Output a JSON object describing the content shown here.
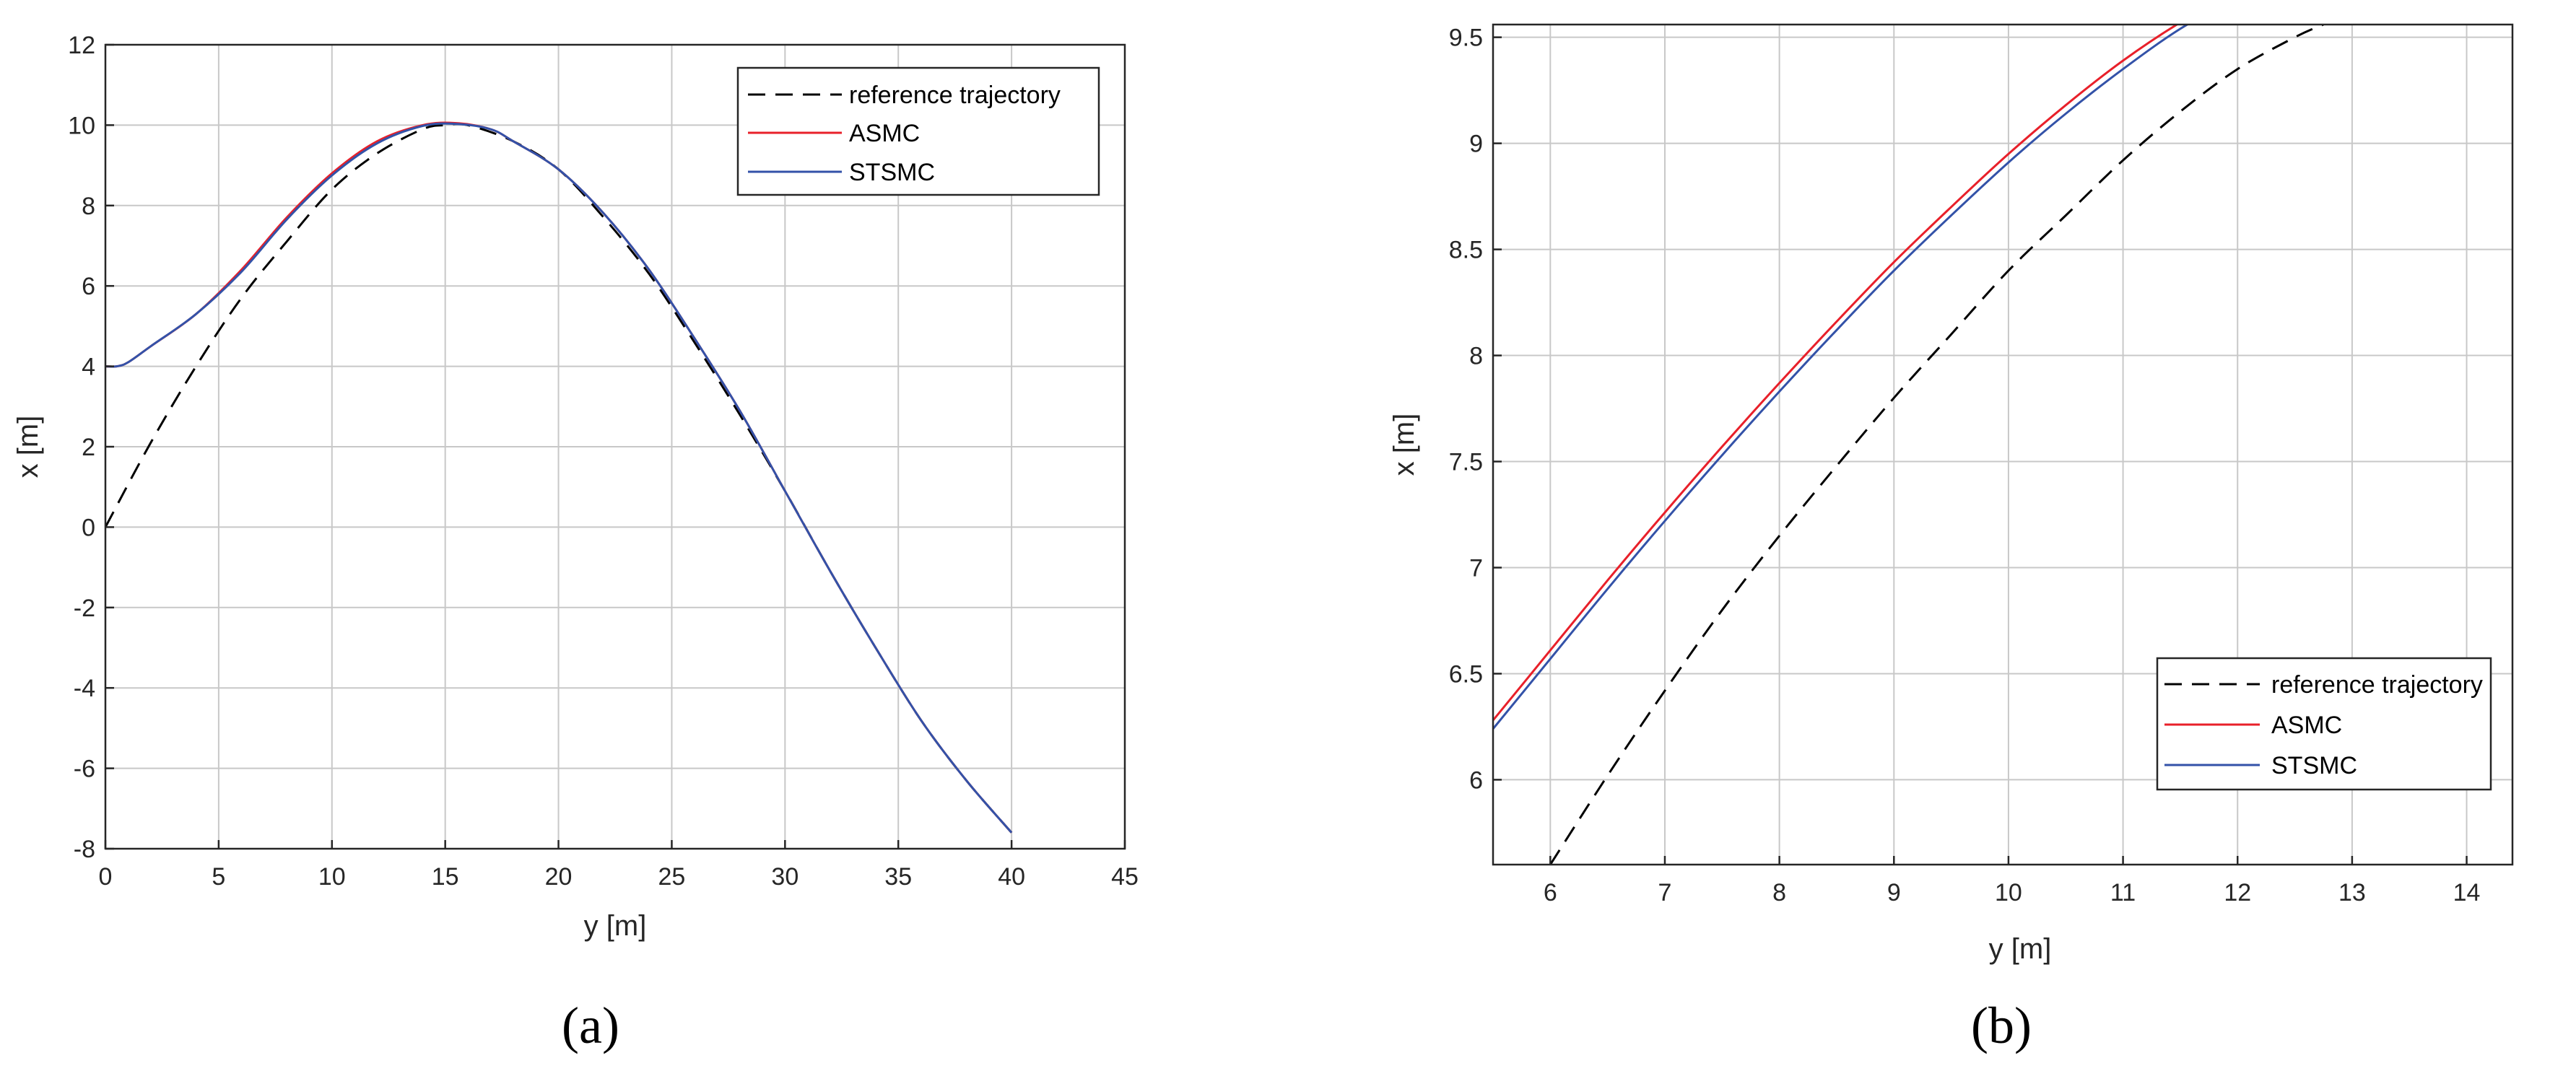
{
  "captions": [
    "(a)",
    "(b)"
  ],
  "colors": {
    "reference": "#000000",
    "asmc": "#e8202a",
    "stsmc": "#3352a8"
  },
  "chart_data": [
    {
      "type": "line",
      "title": "",
      "xlabel": "y [m]",
      "ylabel": "x [m]",
      "xlim": [
        0,
        45
      ],
      "ylim": [
        -8,
        12
      ],
      "xticks": [
        0,
        5,
        10,
        15,
        20,
        25,
        30,
        35,
        40,
        45
      ],
      "yticks": [
        -8,
        -6,
        -4,
        -2,
        0,
        2,
        4,
        6,
        8,
        10,
        12
      ],
      "xtick_labels": [
        "0",
        "5",
        "10",
        "15",
        "20",
        "25",
        "30",
        "35",
        "40",
        "45"
      ],
      "ytick_labels": [
        "-8",
        "-6",
        "-4",
        "-2",
        "0",
        "2",
        "4",
        "6",
        "8",
        "10",
        "12"
      ],
      "grid": true,
      "legend_position": "top-right",
      "series": [
        {
          "name": "reference trajectory",
          "style": "dashed",
          "color": "#000000",
          "x": [
            0,
            2,
            4,
            6,
            8,
            10,
            12,
            14,
            15,
            16,
            18,
            20,
            22,
            24,
            26,
            28,
            30,
            32,
            34,
            36,
            38,
            40
          ],
          "y": [
            0,
            2.1,
            4.0,
            5.7,
            7.1,
            8.4,
            9.3,
            9.9,
            10.0,
            10.0,
            9.6,
            8.9,
            7.7,
            6.3,
            4.6,
            2.8,
            0.9,
            -1.1,
            -3.0,
            -4.8,
            -6.3,
            -7.6
          ]
        },
        {
          "name": "ASMC",
          "style": "solid",
          "color": "#e8202a",
          "x": [
            0,
            0.5,
            1,
            2,
            4,
            6,
            8,
            10,
            12,
            14,
            15.5,
            17,
            18,
            20,
            22,
            24,
            26,
            28,
            30,
            32,
            34,
            36,
            38,
            40
          ],
          "y": [
            4.0,
            4.0,
            4.1,
            4.5,
            5.3,
            6.4,
            7.7,
            8.8,
            9.6,
            10.0,
            10.05,
            9.9,
            9.6,
            8.9,
            7.8,
            6.4,
            4.7,
            2.9,
            0.9,
            -1.1,
            -3.0,
            -4.8,
            -6.3,
            -7.6
          ]
        },
        {
          "name": "STSMC",
          "style": "solid",
          "color": "#3352a8",
          "x": [
            0,
            0.5,
            1,
            2,
            4,
            6,
            8,
            10,
            12,
            14,
            15.5,
            17,
            18,
            20,
            22,
            24,
            26,
            28,
            30,
            32,
            34,
            36,
            38,
            40
          ],
          "y": [
            4.0,
            4.0,
            4.1,
            4.5,
            5.3,
            6.35,
            7.65,
            8.75,
            9.55,
            9.98,
            10.03,
            9.9,
            9.6,
            8.9,
            7.8,
            6.4,
            4.7,
            2.9,
            0.9,
            -1.1,
            -3.0,
            -4.8,
            -6.3,
            -7.6
          ]
        }
      ]
    },
    {
      "type": "line",
      "title": "",
      "xlabel": "y [m]",
      "ylabel": "x [m]",
      "xlim": [
        5.5,
        14.4
      ],
      "ylim": [
        5.6,
        9.56
      ],
      "xticks": [
        6,
        7,
        8,
        9,
        10,
        11,
        12,
        13,
        14
      ],
      "yticks": [
        6,
        6.5,
        7,
        7.5,
        8,
        8.5,
        9,
        9.5
      ],
      "xtick_labels": [
        "6",
        "7",
        "8",
        "9",
        "10",
        "11",
        "12",
        "13",
        "14"
      ],
      "ytick_labels": [
        "6",
        "6.5",
        "7",
        "7.5",
        "8",
        "8.5",
        "9",
        "9.5"
      ],
      "grid": true,
      "legend_position": "bottom-right",
      "series": [
        {
          "name": "reference trajectory",
          "style": "dashed",
          "color": "#000000",
          "x": [
            6.0,
            6.5,
            7.0,
            7.5,
            8.0,
            8.5,
            9.0,
            9.5,
            10.0,
            10.5,
            11.0,
            11.5,
            12.0,
            12.5,
            12.75
          ],
          "y": [
            5.6,
            6.02,
            6.42,
            6.8,
            7.15,
            7.48,
            7.8,
            8.1,
            8.4,
            8.66,
            8.92,
            9.15,
            9.35,
            9.5,
            9.56
          ]
        },
        {
          "name": "ASMC",
          "style": "solid",
          "color": "#e8202a",
          "x": [
            5.5,
            6.0,
            6.5,
            7.0,
            7.5,
            8.0,
            8.5,
            9.0,
            9.5,
            10.0,
            10.5,
            11.0,
            11.5,
            12.0,
            12.07
          ],
          "y": [
            6.28,
            6.61,
            6.94,
            7.26,
            7.57,
            7.87,
            8.16,
            8.44,
            8.7,
            8.95,
            9.18,
            9.39,
            9.57,
            9.72,
            9.74
          ]
        },
        {
          "name": "STSMC",
          "style": "solid",
          "color": "#3352a8",
          "x": [
            5.5,
            6.0,
            6.5,
            7.0,
            7.5,
            8.0,
            8.5,
            9.0,
            9.5,
            10.0,
            10.5,
            11.0,
            11.5,
            12.0,
            12.15
          ],
          "y": [
            6.24,
            6.57,
            6.9,
            7.22,
            7.53,
            7.83,
            8.12,
            8.4,
            8.66,
            8.91,
            9.14,
            9.35,
            9.54,
            9.69,
            9.74
          ]
        }
      ]
    }
  ]
}
